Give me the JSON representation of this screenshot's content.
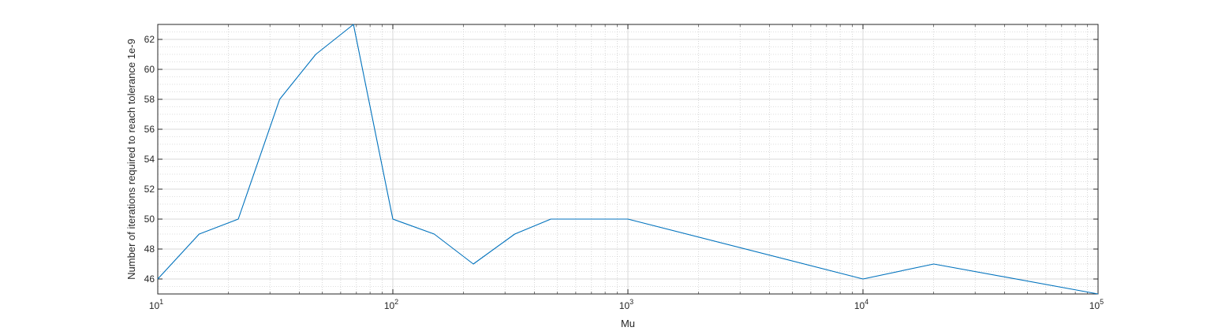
{
  "chart_data": {
    "type": "line",
    "title": "",
    "xlabel": "Mu",
    "ylabel": "Number of iterations required to reach tolerance 1e-9",
    "x_scale": "log",
    "xlim": [
      10,
      100000
    ],
    "ylim": [
      45,
      63
    ],
    "grid": true,
    "minor_grid": true,
    "line_color": "#0072BD",
    "x_ticks": [
      {
        "base": "10",
        "exp": "1"
      },
      {
        "base": "10",
        "exp": "2"
      },
      {
        "base": "10",
        "exp": "3"
      },
      {
        "base": "10",
        "exp": "4"
      },
      {
        "base": "10",
        "exp": "5"
      }
    ],
    "y_ticks": [
      "46",
      "48",
      "50",
      "52",
      "54",
      "56",
      "58",
      "60",
      "62"
    ],
    "series": [
      {
        "x": [
          10,
          15,
          22,
          33,
          47,
          68,
          100,
          150,
          220,
          330,
          470,
          680,
          1000,
          10000,
          20000,
          100000
        ],
        "y": [
          46,
          49,
          50,
          58,
          61,
          63,
          50,
          49,
          47,
          49,
          50,
          50,
          50,
          46,
          47,
          45
        ]
      }
    ]
  }
}
